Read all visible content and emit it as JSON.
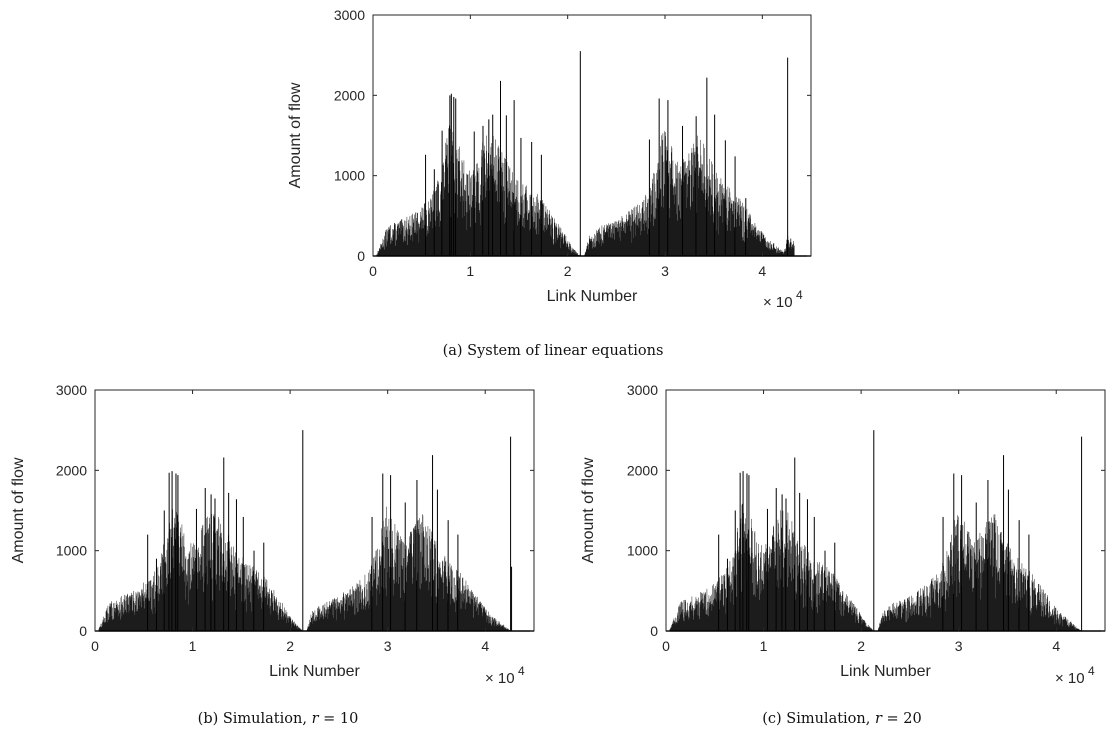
{
  "chart_data": [
    {
      "type": "bar",
      "id": "a",
      "caption": {
        "prefix": "(a) System of linear equations",
        "var": "",
        "suffix": ""
      },
      "xlabel": "Link Number",
      "ylabel": "Amount of flow",
      "xlim": [
        0,
        45000
      ],
      "ylim": [
        0,
        3000
      ],
      "xticks": [
        0,
        10000,
        20000,
        30000,
        40000
      ],
      "xtick_labels": [
        "0",
        "1",
        "2",
        "3",
        "4"
      ],
      "yticks": [
        0,
        1000,
        2000,
        3000
      ],
      "ytick_labels": [
        "0",
        "1000",
        "2000",
        "3000"
      ],
      "x_multiplier": {
        "base": "× 10",
        "exp": "4"
      },
      "series_color": "#000000",
      "gap": [
        21300,
        21700
      ],
      "x_range": [
        300,
        43300
      ],
      "envelope": [
        [
          300,
          0
        ],
        [
          1500,
          380
        ],
        [
          3000,
          460
        ],
        [
          4500,
          560
        ],
        [
          6000,
          750
        ],
        [
          7000,
          1100
        ],
        [
          7800,
          1650
        ],
        [
          8500,
          1500
        ],
        [
          9500,
          1150
        ],
        [
          10500,
          1100
        ],
        [
          11500,
          1550
        ],
        [
          12500,
          1500
        ],
        [
          13500,
          1250
        ],
        [
          14500,
          1050
        ],
        [
          15500,
          900
        ],
        [
          16500,
          820
        ],
        [
          17500,
          700
        ],
        [
          18500,
          500
        ],
        [
          19500,
          320
        ],
        [
          20500,
          120
        ],
        [
          21300,
          0
        ],
        [
          21700,
          0
        ],
        [
          22200,
          250
        ],
        [
          23500,
          380
        ],
        [
          25000,
          450
        ],
        [
          26500,
          580
        ],
        [
          28000,
          760
        ],
        [
          29000,
          1100
        ],
        [
          29800,
          1600
        ],
        [
          30500,
          1450
        ],
        [
          31500,
          1150
        ],
        [
          32500,
          1300
        ],
        [
          33500,
          1550
        ],
        [
          34500,
          1250
        ],
        [
          35500,
          1000
        ],
        [
          36500,
          880
        ],
        [
          37500,
          750
        ],
        [
          38500,
          580
        ],
        [
          39500,
          380
        ],
        [
          40500,
          230
        ],
        [
          41500,
          130
        ],
        [
          42200,
          60
        ],
        [
          42600,
          260
        ],
        [
          43300,
          200
        ]
      ],
      "spikes": [
        [
          7900,
          2000
        ],
        [
          8050,
          2020
        ],
        [
          8300,
          1980
        ],
        [
          8500,
          1960
        ],
        [
          5400,
          1260
        ],
        [
          6300,
          1080
        ],
        [
          7100,
          1560
        ],
        [
          10400,
          1550
        ],
        [
          11300,
          1620
        ],
        [
          11900,
          1700
        ],
        [
          12300,
          1760
        ],
        [
          13100,
          2180
        ],
        [
          13700,
          1750
        ],
        [
          14500,
          1940
        ],
        [
          15200,
          1470
        ],
        [
          16300,
          1420
        ],
        [
          17300,
          1260
        ],
        [
          21300,
          2550
        ],
        [
          28400,
          1450
        ],
        [
          29400,
          1960
        ],
        [
          30300,
          1940
        ],
        [
          31800,
          1620
        ],
        [
          33200,
          1740
        ],
        [
          34300,
          2220
        ],
        [
          35100,
          1760
        ],
        [
          36200,
          1440
        ],
        [
          37200,
          1240
        ],
        [
          38300,
          720
        ],
        [
          42600,
          2470
        ]
      ]
    },
    {
      "type": "bar",
      "id": "b",
      "caption": {
        "prefix": "(b) Simulation, ",
        "var": "r",
        "suffix": " = 10"
      },
      "xlabel": "Link Number",
      "ylabel": "Amount of flow",
      "xlim": [
        0,
        45000
      ],
      "ylim": [
        0,
        3000
      ],
      "xticks": [
        0,
        10000,
        20000,
        30000,
        40000
      ],
      "xtick_labels": [
        "0",
        "1",
        "2",
        "3",
        "4"
      ],
      "yticks": [
        0,
        1000,
        2000,
        3000
      ],
      "ytick_labels": [
        "0",
        "1000",
        "2000",
        "3000"
      ],
      "x_multiplier": {
        "base": "× 10",
        "exp": "4"
      },
      "series_color": "#000000",
      "gap": [
        21300,
        21700
      ],
      "x_range": [
        300,
        42700
      ],
      "envelope": [
        [
          300,
          0
        ],
        [
          1500,
          370
        ],
        [
          3000,
          450
        ],
        [
          4500,
          550
        ],
        [
          6000,
          740
        ],
        [
          7000,
          1080
        ],
        [
          7800,
          1620
        ],
        [
          8500,
          1480
        ],
        [
          9500,
          1140
        ],
        [
          10500,
          1080
        ],
        [
          11500,
          1520
        ],
        [
          12500,
          1480
        ],
        [
          13500,
          1230
        ],
        [
          14500,
          1030
        ],
        [
          15500,
          880
        ],
        [
          16500,
          800
        ],
        [
          17500,
          680
        ],
        [
          18500,
          480
        ],
        [
          19500,
          300
        ],
        [
          20500,
          110
        ],
        [
          21300,
          0
        ],
        [
          21700,
          0
        ],
        [
          22200,
          240
        ],
        [
          23500,
          370
        ],
        [
          25000,
          440
        ],
        [
          26500,
          570
        ],
        [
          28000,
          740
        ],
        [
          29000,
          1080
        ],
        [
          29800,
          1570
        ],
        [
          30500,
          1420
        ],
        [
          31500,
          1130
        ],
        [
          32500,
          1280
        ],
        [
          33500,
          1520
        ],
        [
          34500,
          1230
        ],
        [
          35500,
          980
        ],
        [
          36500,
          860
        ],
        [
          37500,
          730
        ],
        [
          38500,
          560
        ],
        [
          39500,
          370
        ],
        [
          40500,
          220
        ],
        [
          41500,
          120
        ],
        [
          42200,
          40
        ],
        [
          42700,
          0
        ]
      ],
      "spikes": [
        [
          7600,
          1970
        ],
        [
          7900,
          1990
        ],
        [
          8300,
          1960
        ],
        [
          8500,
          1940
        ],
        [
          5400,
          1200
        ],
        [
          6300,
          900
        ],
        [
          7100,
          1500
        ],
        [
          10400,
          1520
        ],
        [
          11300,
          1780
        ],
        [
          11900,
          1700
        ],
        [
          12300,
          1650
        ],
        [
          13200,
          2160
        ],
        [
          13700,
          1720
        ],
        [
          14500,
          1640
        ],
        [
          15200,
          1420
        ],
        [
          16300,
          1000
        ],
        [
          17300,
          1100
        ],
        [
          21300,
          2500
        ],
        [
          28400,
          1420
        ],
        [
          29500,
          1960
        ],
        [
          30300,
          1940
        ],
        [
          31800,
          1600
        ],
        [
          33000,
          1880
        ],
        [
          34600,
          2190
        ],
        [
          35100,
          1760
        ],
        [
          36200,
          1380
        ],
        [
          37200,
          1200
        ],
        [
          42600,
          2420
        ],
        [
          42700,
          800
        ]
      ]
    },
    {
      "type": "bar",
      "id": "c",
      "caption": {
        "prefix": "(c) Simulation, ",
        "var": "r",
        "suffix": " = 20"
      },
      "xlabel": "Link Number",
      "ylabel": "Amount of flow",
      "xlim": [
        0,
        45000
      ],
      "ylim": [
        0,
        3000
      ],
      "xticks": [
        0,
        10000,
        20000,
        30000,
        40000
      ],
      "xtick_labels": [
        "0",
        "1",
        "2",
        "3",
        "4"
      ],
      "yticks": [
        0,
        1000,
        2000,
        3000
      ],
      "ytick_labels": [
        "0",
        "1000",
        "2000",
        "3000"
      ],
      "x_multiplier": {
        "base": "× 10",
        "exp": "4"
      },
      "series_color": "#000000",
      "gap": [
        21300,
        21700
      ],
      "x_range": [
        300,
        42600
      ],
      "envelope": [
        [
          300,
          0
        ],
        [
          1500,
          370
        ],
        [
          3000,
          450
        ],
        [
          4500,
          550
        ],
        [
          6000,
          740
        ],
        [
          7000,
          1080
        ],
        [
          7800,
          1620
        ],
        [
          8500,
          1480
        ],
        [
          9500,
          1140
        ],
        [
          10500,
          1080
        ],
        [
          11500,
          1520
        ],
        [
          12500,
          1480
        ],
        [
          13500,
          1230
        ],
        [
          14500,
          1030
        ],
        [
          15500,
          880
        ],
        [
          16500,
          800
        ],
        [
          17500,
          680
        ],
        [
          18500,
          480
        ],
        [
          19500,
          300
        ],
        [
          20500,
          110
        ],
        [
          21300,
          0
        ],
        [
          21700,
          0
        ],
        [
          22200,
          240
        ],
        [
          23500,
          370
        ],
        [
          25000,
          440
        ],
        [
          26500,
          570
        ],
        [
          28000,
          740
        ],
        [
          29000,
          1080
        ],
        [
          29800,
          1570
        ],
        [
          30500,
          1420
        ],
        [
          31500,
          1130
        ],
        [
          32500,
          1280
        ],
        [
          33500,
          1520
        ],
        [
          34500,
          1230
        ],
        [
          35500,
          980
        ],
        [
          36500,
          860
        ],
        [
          37500,
          730
        ],
        [
          38500,
          560
        ],
        [
          39500,
          370
        ],
        [
          40500,
          220
        ],
        [
          41500,
          120
        ],
        [
          42200,
          40
        ],
        [
          42600,
          0
        ]
      ],
      "spikes": [
        [
          7600,
          1970
        ],
        [
          7900,
          1990
        ],
        [
          8300,
          1960
        ],
        [
          8500,
          1940
        ],
        [
          5400,
          1200
        ],
        [
          6300,
          900
        ],
        [
          7100,
          1500
        ],
        [
          10400,
          1520
        ],
        [
          11300,
          1780
        ],
        [
          11900,
          1700
        ],
        [
          12300,
          1650
        ],
        [
          13200,
          2160
        ],
        [
          13700,
          1720
        ],
        [
          14500,
          1640
        ],
        [
          15200,
          1420
        ],
        [
          16300,
          1000
        ],
        [
          17300,
          1100
        ],
        [
          21300,
          2500
        ],
        [
          28400,
          1420
        ],
        [
          29500,
          1960
        ],
        [
          30300,
          1940
        ],
        [
          31800,
          1600
        ],
        [
          33000,
          1880
        ],
        [
          34600,
          2190
        ],
        [
          35100,
          1760
        ],
        [
          36200,
          1380
        ],
        [
          37200,
          1200
        ],
        [
          42600,
          2420
        ]
      ]
    }
  ]
}
